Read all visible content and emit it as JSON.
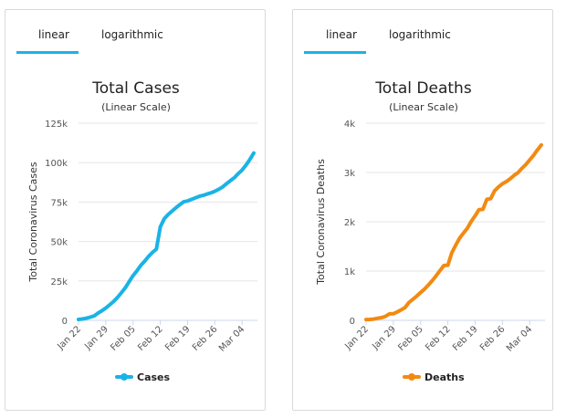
{
  "panels": [
    {
      "tabs": [
        "linear",
        "logarithmic"
      ],
      "active_tab": "linear",
      "accent": "#1ab3e6",
      "chart_data": {
        "type": "line",
        "title": "Total Cases",
        "subtitle": "(Linear Scale)",
        "ylabel": "Total Coronavirus Cases",
        "xlabel": "",
        "x_ticks": [
          "Jan 22",
          "Jan 29",
          "Feb 05",
          "Feb 12",
          "Feb 19",
          "Feb 26",
          "Mar 04"
        ],
        "y_ticks": [
          "0",
          "25k",
          "50k",
          "75k",
          "100k",
          "125k"
        ],
        "ylim": [
          0,
          125000
        ],
        "grid": true,
        "legend": "bottom",
        "series": [
          {
            "name": "Cases",
            "color": "#1ab3e6",
            "x": [
              "Jan 22",
              "Jan 23",
              "Jan 24",
              "Jan 25",
              "Jan 26",
              "Jan 27",
              "Jan 28",
              "Jan 29",
              "Jan 30",
              "Jan 31",
              "Feb 01",
              "Feb 02",
              "Feb 03",
              "Feb 04",
              "Feb 05",
              "Feb 06",
              "Feb 07",
              "Feb 08",
              "Feb 09",
              "Feb 10",
              "Feb 11",
              "Feb 12",
              "Feb 13",
              "Feb 14",
              "Feb 15",
              "Feb 16",
              "Feb 17",
              "Feb 18",
              "Feb 19",
              "Feb 20",
              "Feb 21",
              "Feb 22",
              "Feb 23",
              "Feb 24",
              "Feb 25",
              "Feb 26",
              "Feb 27",
              "Feb 28",
              "Feb 29",
              "Mar 01",
              "Mar 02",
              "Mar 03",
              "Mar 04",
              "Mar 05",
              "Mar 06",
              "Mar 07"
            ],
            "values": [
              580,
              845,
              1317,
              2015,
              2800,
              4581,
              6058,
              7813,
              9823,
              11950,
              14553,
              17391,
              20630,
              24545,
              28276,
              31439,
              34876,
              37552,
              40553,
              43099,
              45134,
              59287,
              64438,
              67100,
              69197,
              71329,
              73332,
              75184,
              75700,
              76677,
              77673,
              78651,
              79205,
              80087,
              80828,
              81820,
              83112,
              84615,
              86604,
              88585,
              90443,
              93016,
              95314,
              98425,
              102050,
              106099
            ]
          }
        ]
      }
    },
    {
      "tabs": [
        "linear",
        "logarithmic"
      ],
      "active_tab": "linear",
      "accent": "#1ab3e6",
      "chart_data": {
        "type": "line",
        "title": "Total Deaths",
        "subtitle": "(Linear Scale)",
        "ylabel": "Total Coronavirus Deaths",
        "xlabel": "",
        "x_ticks": [
          "Jan 22",
          "Jan 29",
          "Feb 05",
          "Feb 12",
          "Feb 19",
          "Feb 26",
          "Mar 04"
        ],
        "y_ticks": [
          "0",
          "1k",
          "2k",
          "3k",
          "4k"
        ],
        "ylim": [
          0,
          4000
        ],
        "grid": true,
        "legend": "bottom",
        "series": [
          {
            "name": "Deaths",
            "color": "#f28a12",
            "x": [
              "Jan 22",
              "Jan 23",
              "Jan 24",
              "Jan 25",
              "Jan 26",
              "Jan 27",
              "Jan 28",
              "Jan 29",
              "Jan 30",
              "Jan 31",
              "Feb 01",
              "Feb 02",
              "Feb 03",
              "Feb 04",
              "Feb 05",
              "Feb 06",
              "Feb 07",
              "Feb 08",
              "Feb 09",
              "Feb 10",
              "Feb 11",
              "Feb 12",
              "Feb 13",
              "Feb 14",
              "Feb 15",
              "Feb 16",
              "Feb 17",
              "Feb 18",
              "Feb 19",
              "Feb 20",
              "Feb 21",
              "Feb 22",
              "Feb 23",
              "Feb 24",
              "Feb 25",
              "Feb 26",
              "Feb 27",
              "Feb 28",
              "Feb 29",
              "Mar 01",
              "Mar 02",
              "Mar 03",
              "Mar 04",
              "Mar 05",
              "Mar 06",
              "Mar 07"
            ],
            "values": [
              17,
              18,
              26,
              42,
              56,
              82,
              131,
              133,
              171,
              213,
              259,
              362,
              426,
              492,
              564,
              634,
              719,
              806,
              906,
              1013,
              1113,
              1118,
              1371,
              1523,
              1666,
              1770,
              1868,
              2007,
              2122,
              2247,
              2251,
              2458,
              2469,
              2629,
              2708,
              2770,
              2814,
              2872,
              2941,
              2996,
              3085,
              3160,
              3254,
              3348,
              3460,
              3558
            ]
          }
        ]
      }
    }
  ]
}
